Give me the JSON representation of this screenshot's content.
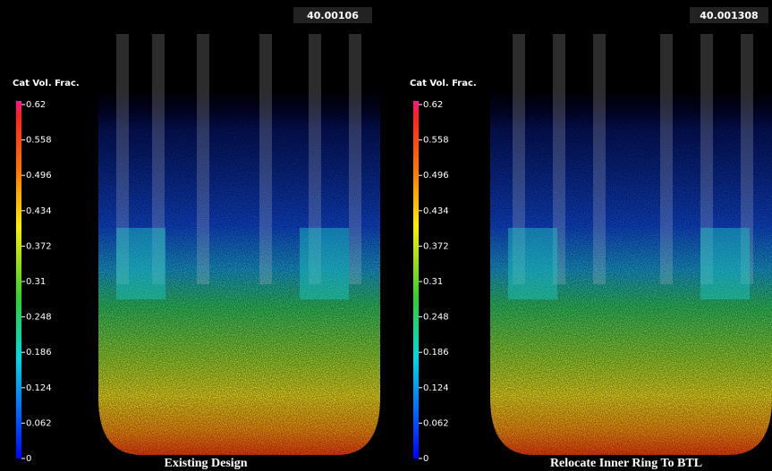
{
  "panels": [
    {
      "time": "40.00106",
      "legend_title": "Cat Vol. Frac.",
      "ticks": [
        "0.62",
        "0.558",
        "0.496",
        "0.434",
        "0.372",
        "0.31",
        "0.248",
        "0.186",
        "0.124",
        "0.062",
        "0"
      ],
      "caption": "Existing Design"
    },
    {
      "time": "40.001308",
      "legend_title": "Cat Vol. Frac.",
      "ticks": [
        "0.62",
        "0.558",
        "0.496",
        "0.434",
        "0.372",
        "0.31",
        "0.248",
        "0.186",
        "0.124",
        "0.062",
        "0"
      ],
      "caption": "Relocate Inner Ring To BTL"
    }
  ]
}
